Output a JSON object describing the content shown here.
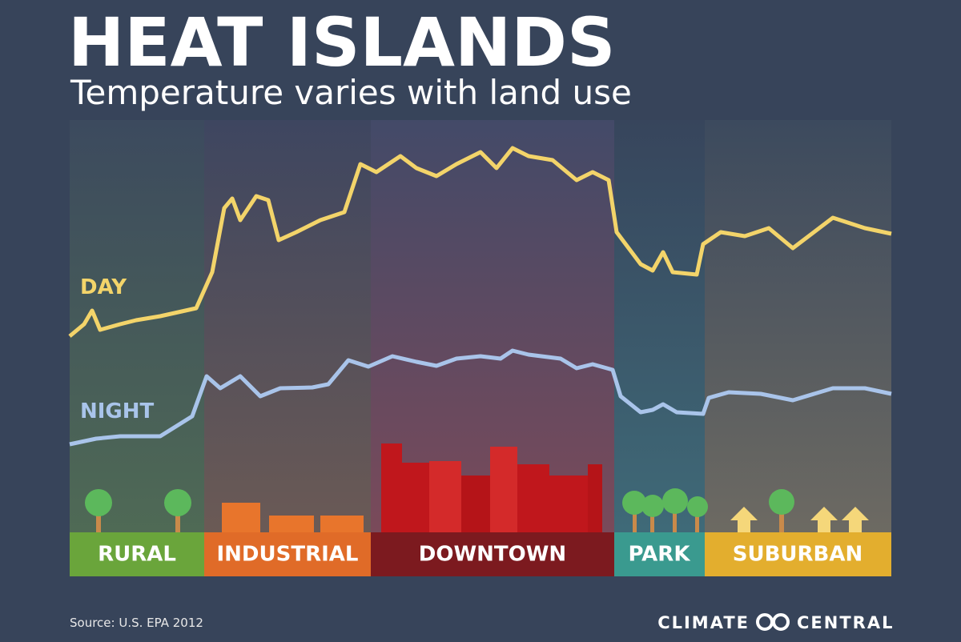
{
  "header": {
    "title": "HEAT ISLANDS",
    "subtitle": "Temperature varies with land use"
  },
  "lines": {
    "day": "DAY",
    "night": "NIGHT"
  },
  "zones": [
    "RURAL",
    "INDUSTRIAL",
    "DOWNTOWN",
    "PARK",
    "SUBURBAN"
  ],
  "footer": {
    "source": "Source: U.S. EPA 2012",
    "logo_left": "CLIMATE",
    "logo_right": "CENTRAL"
  }
}
